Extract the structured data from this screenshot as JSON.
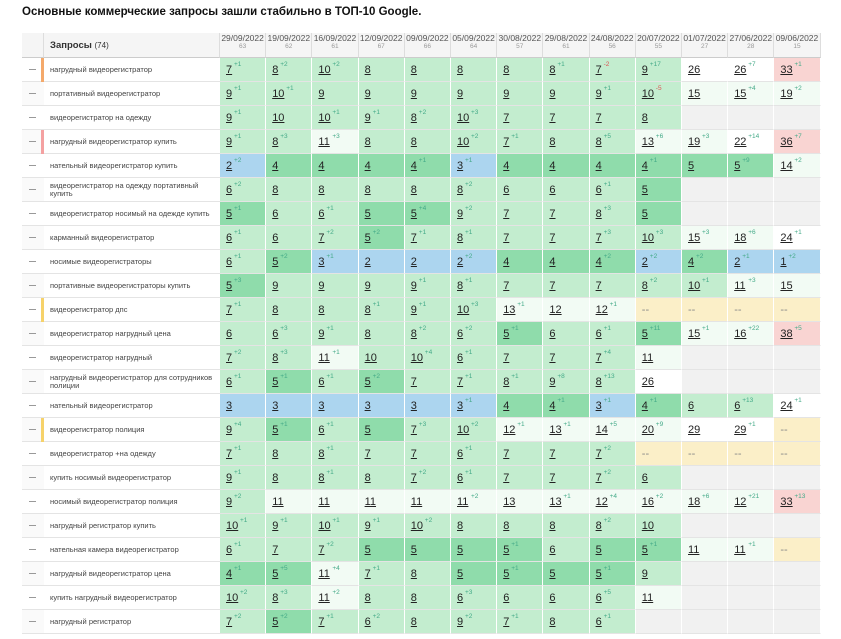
{
  "title": "Основные коммерческие запросы зашли стабильно в ТОП-10 Google.",
  "table": {
    "query_header": "Запросы",
    "query_count": "(74)",
    "dates": [
      "29/09/2022",
      "19/09/2022",
      "16/09/2022",
      "12/09/2022",
      "09/09/2022",
      "05/09/2022",
      "30/08/2022",
      "29/08/2022",
      "24/08/2022",
      "20/07/2022",
      "01/07/2022",
      "27/06/2022",
      "09/06/2022"
    ],
    "date_counts": [
      63,
      62,
      61,
      67,
      66,
      64,
      57,
      61,
      56,
      55,
      27,
      28,
      15
    ],
    "rows": [
      {
        "query": "нагрудный видеорегистратор",
        "cells": [
          [
            7,
            "+1"
          ],
          [
            8,
            "+2"
          ],
          [
            10,
            "+2"
          ],
          [
            8
          ],
          [
            8
          ],
          [
            8
          ],
          [
            8
          ],
          [
            8,
            "+1"
          ],
          [
            7,
            "-2"
          ],
          [
            9,
            "+17"
          ],
          [
            26
          ],
          [
            26,
            "+7"
          ],
          [
            33,
            "+1"
          ]
        ]
      },
      {
        "query": "портативный видеорегистратор",
        "cells": [
          [
            9,
            "+1"
          ],
          [
            10,
            "+1"
          ],
          [
            9
          ],
          [
            9
          ],
          [
            9
          ],
          [
            9
          ],
          [
            9
          ],
          [
            9
          ],
          [
            9,
            "+1"
          ],
          [
            10,
            "-5"
          ],
          [
            15
          ],
          [
            15,
            "+4"
          ],
          [
            19,
            "+2"
          ]
        ]
      },
      {
        "query": "видеорегистратор на одежду",
        "cells": [
          [
            9,
            "+1"
          ],
          [
            10
          ],
          [
            10,
            "+1"
          ],
          [
            9,
            "+1"
          ],
          [
            8,
            "+2"
          ],
          [
            10,
            "+3"
          ],
          [
            7
          ],
          [
            7
          ],
          [
            7
          ],
          [
            8
          ],
          null,
          null,
          null
        ]
      },
      {
        "query": "нагрудный видеорегистратор купить",
        "cells": [
          [
            9,
            "+1"
          ],
          [
            8,
            "+3"
          ],
          [
            11,
            "+3"
          ],
          [
            8
          ],
          [
            8
          ],
          [
            10,
            "+2"
          ],
          [
            7,
            "+1"
          ],
          [
            8
          ],
          [
            8,
            "+5"
          ],
          [
            13,
            "+6"
          ],
          [
            19,
            "+3"
          ],
          [
            22,
            "+14"
          ],
          [
            36,
            "+7"
          ]
        ]
      },
      {
        "query": "нательный видеорегистратор купить",
        "cells": [
          [
            2,
            "+2"
          ],
          [
            4
          ],
          [
            4
          ],
          [
            4
          ],
          [
            4,
            "+1"
          ],
          [
            3,
            "+1"
          ],
          [
            4
          ],
          [
            4
          ],
          [
            4
          ],
          [
            4,
            "+1"
          ],
          [
            5
          ],
          [
            5,
            "+9"
          ],
          [
            14,
            "+2"
          ]
        ]
      },
      {
        "query": "видеорегистратор на одежду портативный купить",
        "cells": [
          [
            6,
            "+2"
          ],
          [
            8
          ],
          [
            8
          ],
          [
            8
          ],
          [
            8
          ],
          [
            8,
            "+2"
          ],
          [
            6
          ],
          [
            6
          ],
          [
            6,
            "+1"
          ],
          [
            5
          ],
          null,
          null,
          null
        ]
      },
      {
        "query": "видеорегистратор носимый на одежде купить",
        "cells": [
          [
            5,
            "+1"
          ],
          [
            6
          ],
          [
            6,
            "+1"
          ],
          [
            5
          ],
          [
            5,
            "+4"
          ],
          [
            9,
            "+2"
          ],
          [
            7
          ],
          [
            7
          ],
          [
            8,
            "+3"
          ],
          [
            5
          ],
          null,
          null,
          null
        ]
      },
      {
        "query": "карманный видеорегистратор",
        "cells": [
          [
            6,
            "+1"
          ],
          [
            6
          ],
          [
            7,
            "+2"
          ],
          [
            5,
            "+2"
          ],
          [
            7,
            "+1"
          ],
          [
            8,
            "+1"
          ],
          [
            7
          ],
          [
            7
          ],
          [
            7,
            "+3"
          ],
          [
            10,
            "+3"
          ],
          [
            15,
            "+3"
          ],
          [
            18,
            "+6"
          ],
          [
            24,
            "+1"
          ]
        ]
      },
      {
        "query": "носимые видеорегистраторы",
        "cells": [
          [
            6,
            "+1"
          ],
          [
            5,
            "+2"
          ],
          [
            3,
            "+1"
          ],
          [
            2
          ],
          [
            2
          ],
          [
            2,
            "+2"
          ],
          [
            4
          ],
          [
            4
          ],
          [
            4,
            "+2"
          ],
          [
            2,
            "+2"
          ],
          [
            4,
            "+2"
          ],
          [
            2,
            "+1"
          ],
          [
            1,
            "+2"
          ]
        ]
      },
      {
        "query": "портативные видеорегистраторы купить",
        "cells": [
          [
            5,
            "+3"
          ],
          [
            9
          ],
          [
            9
          ],
          [
            9
          ],
          [
            9,
            "+1"
          ],
          [
            8,
            "+1"
          ],
          [
            7
          ],
          [
            7
          ],
          [
            7
          ],
          [
            8,
            "+2"
          ],
          [
            10,
            "+1"
          ],
          [
            11,
            "+3"
          ],
          [
            15
          ]
        ]
      },
      {
        "query": "видеорегистратор дпс",
        "cells": [
          [
            7,
            "+1"
          ],
          [
            8
          ],
          [
            8
          ],
          [
            8,
            "+1"
          ],
          [
            9,
            "+1"
          ],
          [
            10,
            "+3"
          ],
          [
            13,
            "+1"
          ],
          [
            12
          ],
          [
            12,
            "+1"
          ],
          "--",
          "--",
          "--",
          "--"
        ]
      },
      {
        "query": "видеорегистратор нагрудный цена",
        "cells": [
          [
            6
          ],
          [
            6,
            "+3"
          ],
          [
            9,
            "+1"
          ],
          [
            8
          ],
          [
            8,
            "+2"
          ],
          [
            6,
            "+2"
          ],
          [
            5,
            "+1"
          ],
          [
            6
          ],
          [
            6,
            "+1"
          ],
          [
            5,
            "+11"
          ],
          [
            15,
            "+1"
          ],
          [
            16,
            "+22"
          ],
          [
            38,
            "+5"
          ]
        ]
      },
      {
        "query": "видеорегистратор нагрудный",
        "cells": [
          [
            7,
            "+2"
          ],
          [
            8,
            "+3"
          ],
          [
            11,
            "+1"
          ],
          [
            10
          ],
          [
            10,
            "+4"
          ],
          [
            6,
            "+1"
          ],
          [
            7
          ],
          [
            7
          ],
          [
            7,
            "+4"
          ],
          [
            11
          ],
          null,
          null,
          null
        ]
      },
      {
        "query": "нагрудный видеорегистратор для сотрудников полиции",
        "cells": [
          [
            6,
            "+1"
          ],
          [
            5,
            "+1"
          ],
          [
            6,
            "+1"
          ],
          [
            5,
            "+2"
          ],
          [
            7
          ],
          [
            7,
            "+1"
          ],
          [
            8,
            "+1"
          ],
          [
            9,
            "+8"
          ],
          [
            8,
            "+13"
          ],
          [
            26
          ],
          null,
          null,
          null
        ]
      },
      {
        "query": "нательный видеорегистратор",
        "cells": [
          [
            3
          ],
          [
            3
          ],
          [
            3
          ],
          [
            3
          ],
          [
            3
          ],
          [
            3,
            "+1"
          ],
          [
            4
          ],
          [
            4,
            "+1"
          ],
          [
            3,
            "+1"
          ],
          [
            4,
            "+1"
          ],
          [
            6
          ],
          [
            6,
            "+13"
          ],
          [
            24,
            "+1"
          ]
        ]
      },
      {
        "query": "видеорегистратор полиция",
        "cells": [
          [
            9,
            "+4"
          ],
          [
            5,
            "+1"
          ],
          [
            6,
            "+1"
          ],
          [
            5
          ],
          [
            7,
            "+3"
          ],
          [
            10,
            "+2"
          ],
          [
            12,
            "+1"
          ],
          [
            13,
            "+1"
          ],
          [
            14,
            "+5"
          ],
          [
            20,
            "+9"
          ],
          [
            29
          ],
          [
            29,
            "+1"
          ],
          "--"
        ]
      },
      {
        "query": "видеорегистратор +на одежду",
        "cells": [
          [
            7,
            "+1"
          ],
          [
            8
          ],
          [
            8,
            "+1"
          ],
          [
            7
          ],
          [
            7
          ],
          [
            6,
            "+1"
          ],
          [
            7
          ],
          [
            7
          ],
          [
            7,
            "+2"
          ],
          "--",
          "--",
          "--",
          "--"
        ]
      },
      {
        "query": "купить носимый видеорегистратор",
        "cells": [
          [
            9,
            "+1"
          ],
          [
            8
          ],
          [
            8,
            "+1"
          ],
          [
            8
          ],
          [
            7,
            "+2"
          ],
          [
            6,
            "+1"
          ],
          [
            7
          ],
          [
            7
          ],
          [
            7,
            "+2"
          ],
          [
            6
          ],
          null,
          null,
          null
        ]
      },
      {
        "query": "носимый видеорегистратор полиция",
        "cells": [
          [
            9,
            "+2"
          ],
          [
            11
          ],
          [
            11
          ],
          [
            11
          ],
          [
            11
          ],
          [
            11,
            "+2"
          ],
          [
            13
          ],
          [
            13,
            "+1"
          ],
          [
            12,
            "+4"
          ],
          [
            16,
            "+2"
          ],
          [
            18,
            "+6"
          ],
          [
            12,
            "+21"
          ],
          [
            33,
            "+13"
          ]
        ]
      },
      {
        "query": "нагрудный регистратор купить",
        "cells": [
          [
            10,
            "+1"
          ],
          [
            9,
            "+1"
          ],
          [
            10,
            "+1"
          ],
          [
            9,
            "+1"
          ],
          [
            10,
            "+2"
          ],
          [
            8
          ],
          [
            8
          ],
          [
            8
          ],
          [
            8,
            "+2"
          ],
          [
            10
          ],
          null,
          null,
          null
        ]
      },
      {
        "query": "нательная камера видеорегистратор",
        "cells": [
          [
            6,
            "+1"
          ],
          [
            7
          ],
          [
            7,
            "+2"
          ],
          [
            5
          ],
          [
            5
          ],
          [
            5
          ],
          [
            5,
            "+1"
          ],
          [
            6
          ],
          [
            5
          ],
          [
            5,
            "+1"
          ],
          [
            11
          ],
          [
            11,
            "+1"
          ],
          "--"
        ]
      },
      {
        "query": "нагрудный видеорегистратор цена",
        "cells": [
          [
            4,
            "+1"
          ],
          [
            5,
            "+5"
          ],
          [
            11,
            "+4"
          ],
          [
            7,
            "+1"
          ],
          [
            8
          ],
          [
            5
          ],
          [
            5,
            "+1"
          ],
          [
            5
          ],
          [
            5,
            "+1"
          ],
          [
            9
          ],
          null,
          null,
          null
        ]
      },
      {
        "query": "купить нагрудный видеорегистратор",
        "cells": [
          [
            10,
            "+2"
          ],
          [
            8,
            "+3"
          ],
          [
            11,
            "+2"
          ],
          [
            8
          ],
          [
            8
          ],
          [
            6,
            "+3"
          ],
          [
            6
          ],
          [
            6
          ],
          [
            6,
            "+5"
          ],
          [
            11
          ],
          null,
          null,
          null
        ]
      },
      {
        "query": "нагрудный регистратор",
        "cells": [
          [
            7,
            "+2"
          ],
          [
            5,
            "+2"
          ],
          [
            7,
            "+1"
          ],
          [
            6,
            "+2"
          ],
          [
            8
          ],
          [
            9,
            "+2"
          ],
          [
            7,
            "+1"
          ],
          [
            8
          ],
          [
            6,
            "+1"
          ],
          null,
          null,
          null,
          null
        ]
      }
    ]
  }
}
